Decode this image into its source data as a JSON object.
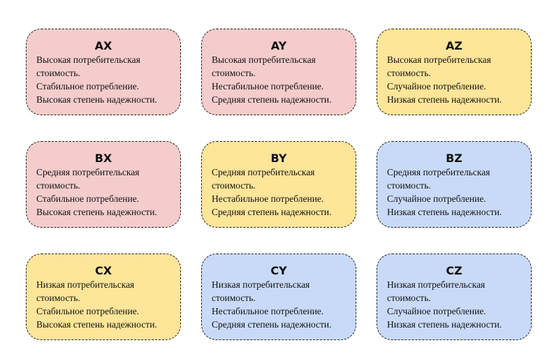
{
  "colors": {
    "pink": "#f4cccc",
    "yellow": "#fde599",
    "blue": "#c9daf8"
  },
  "cards": [
    {
      "code": "AX",
      "color": "pink",
      "lines": [
        "Высокая потребительская",
        "стоимость.",
        "Стабильное потребление.",
        "Высокая степень надежности."
      ]
    },
    {
      "code": "AY",
      "color": "pink",
      "lines": [
        "Высокая потребительская",
        "стоимость.",
        "Нестабильное потребление.",
        "Средняя степень надежности."
      ]
    },
    {
      "code": "AZ",
      "color": "yellow",
      "lines": [
        "Высокая потребительская",
        "стоимость.",
        "Случайное  потребление.",
        "Низкая степень надежности."
      ]
    },
    {
      "code": "BX",
      "color": "pink",
      "lines": [
        "Средняя потребительская",
        "стоимость.",
        "Стабильное потребление.",
        "Высокая степень надежности."
      ]
    },
    {
      "code": "BY",
      "color": "yellow",
      "lines": [
        "Средняя потребительская",
        "стоимость.",
        "Нестабильное потребление.",
        "Средняя степень надежности."
      ]
    },
    {
      "code": "BZ",
      "color": "blue",
      "lines": [
        "Средняя потребительская",
        "стоимость.",
        "Случайное потребление.",
        "Низкая степень надежности."
      ]
    },
    {
      "code": "CX",
      "color": "yellow",
      "lines": [
        "Низкая потребительская",
        "стоимость.",
        "Стабильное потребление.",
        "Высокая степень надежности."
      ]
    },
    {
      "code": "CY",
      "color": "blue",
      "lines": [
        "Низкая потребительская",
        "стоимость.",
        "Нестабильное потребление.",
        "Средняя степень надежности."
      ]
    },
    {
      "code": "CZ",
      "color": "blue",
      "lines": [
        "Низкая потребительская",
        "стоимость.",
        "Случайное потребление.",
        "Низкая степень надежности."
      ]
    }
  ]
}
